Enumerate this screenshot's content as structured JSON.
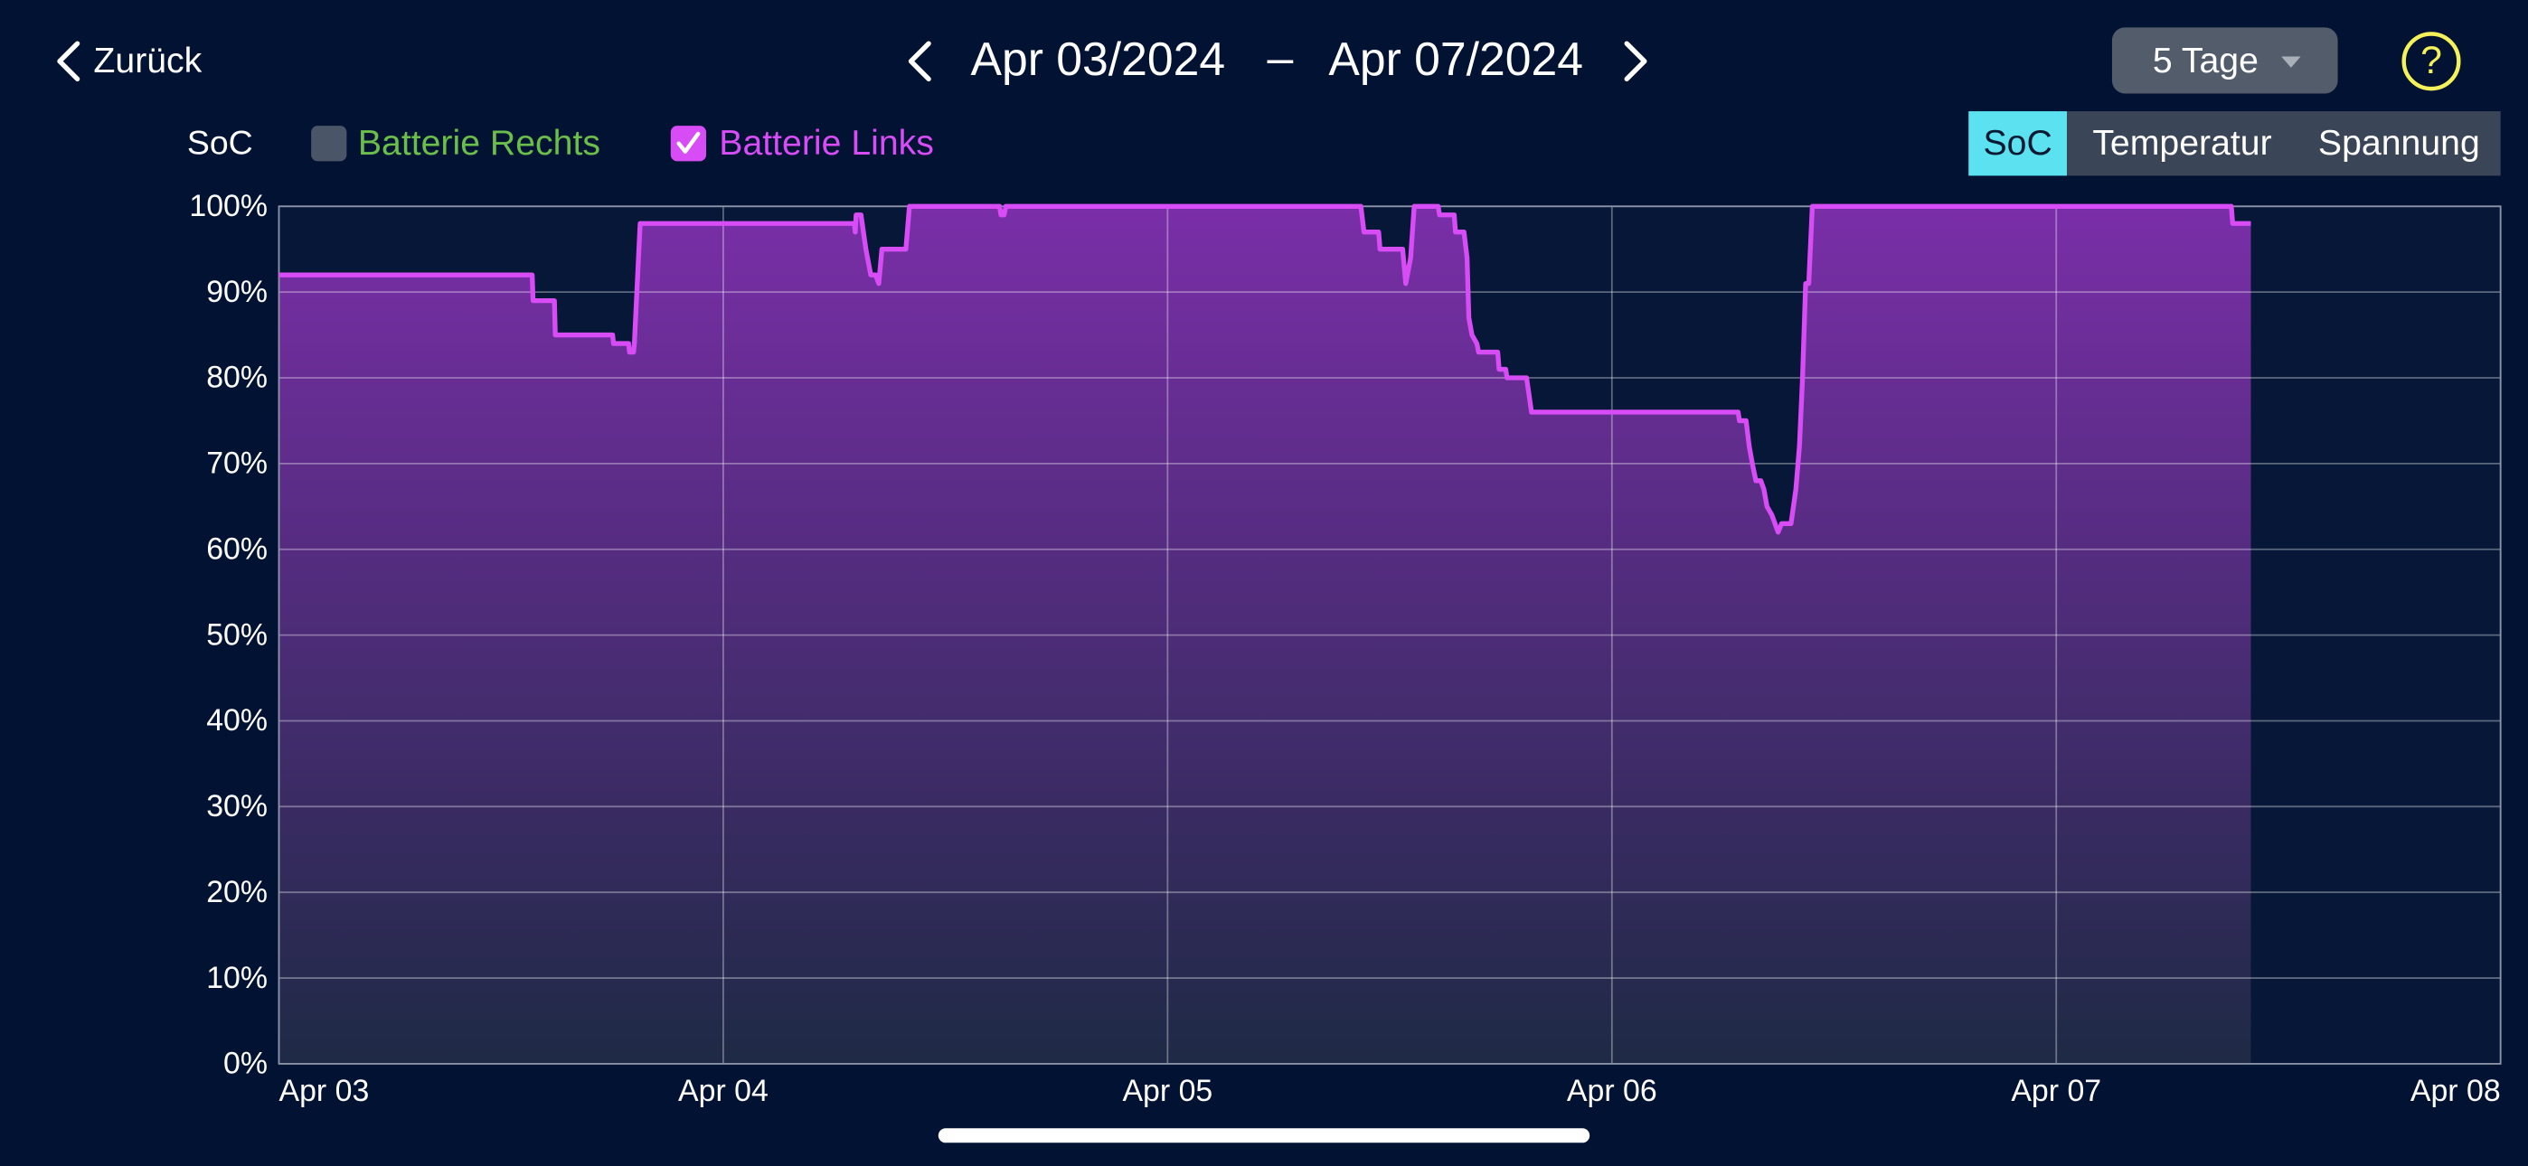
{
  "header": {
    "back": "Zurück",
    "range_start": "Apr 03/2024",
    "range_separator": "–",
    "range_end": "Apr 07/2024",
    "period": "5 Tage",
    "help": "?"
  },
  "controls": {
    "other_battery": {
      "label": "Batterie Rechts",
      "color": "#6abf4b",
      "checked": false
    },
    "tabs": [
      "SoC",
      "Temperatur",
      "Spannung"
    ],
    "active_tab": 0
  },
  "chart_data": {
    "type": "line",
    "legend_title": "SoC",
    "x": [
      0,
      0.57,
      0.572,
      0.62,
      0.622,
      0.751,
      0.753,
      0.787,
      0.789,
      0.798,
      0.8,
      0.813,
      1.295,
      1.297,
      1.299,
      1.31,
      1.321,
      1.332,
      1.343,
      1.35,
      1.357,
      1.411,
      1.419,
      1.622,
      1.625,
      1.632,
      1.636,
      2.435,
      2.442,
      2.475,
      2.478,
      2.529,
      2.536,
      2.547,
      2.555,
      2.609,
      2.612,
      2.645,
      2.648,
      2.667,
      2.674,
      2.678,
      2.685,
      2.696,
      2.7,
      2.743,
      2.746,
      2.761,
      2.764,
      2.808,
      2.819,
      3.284,
      3.287,
      3.302,
      3.309,
      3.316,
      3.324,
      3.335,
      3.342,
      3.349,
      3.36,
      3.367,
      3.374,
      3.382,
      3.403,
      3.414,
      3.422,
      3.429,
      3.436,
      3.443,
      3.451,
      4.394,
      4.397,
      4.438
    ],
    "series": [
      {
        "name": "Batterie Links",
        "color": "#d84cf5",
        "checked": true,
        "values": [
          92,
          92,
          89,
          89,
          85,
          85,
          84,
          84,
          83,
          83,
          84,
          98,
          98,
          97,
          99,
          99,
          95,
          92,
          92,
          91,
          95,
          95,
          100,
          100,
          99,
          99,
          100,
          100,
          97,
          97,
          95,
          95,
          91,
          94,
          100,
          100,
          99,
          99,
          97,
          97,
          94,
          87,
          85,
          84,
          83,
          83,
          81,
          81,
          80,
          80,
          76,
          76,
          75,
          75,
          72,
          70,
          68,
          68,
          67,
          65,
          64,
          63,
          62,
          63,
          63,
          67,
          72,
          80,
          91,
          91,
          100,
          100,
          98,
          98
        ]
      }
    ],
    "xlim": [
      0,
      5
    ],
    "xticks": [
      {
        "value": 0,
        "label": "Apr 03"
      },
      {
        "value": 1,
        "label": "Apr 04"
      },
      {
        "value": 2,
        "label": "Apr 05"
      },
      {
        "value": 3,
        "label": "Apr 06"
      },
      {
        "value": 4,
        "label": "Apr 07"
      },
      {
        "value": 5,
        "label": "Apr 08"
      }
    ],
    "ylim": [
      0,
      100
    ],
    "yticks": [
      {
        "value": 0,
        "label": "0%"
      },
      {
        "value": 10,
        "label": "10%"
      },
      {
        "value": 20,
        "label": "20%"
      },
      {
        "value": 30,
        "label": "30%"
      },
      {
        "value": 40,
        "label": "40%"
      },
      {
        "value": 50,
        "label": "50%"
      },
      {
        "value": 60,
        "label": "60%"
      },
      {
        "value": 70,
        "label": "70%"
      },
      {
        "value": 80,
        "label": "80%"
      },
      {
        "value": 90,
        "label": "90%"
      },
      {
        "value": 100,
        "label": "100%"
      }
    ],
    "grid": true
  }
}
